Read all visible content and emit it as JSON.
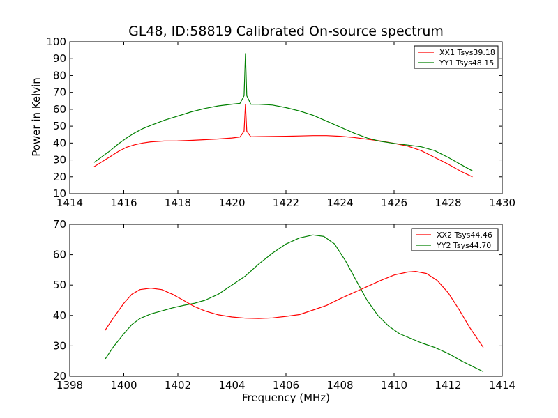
{
  "chart_data": [
    {
      "type": "line",
      "title": "GL48, ID:58819 Calibrated On-source spectrum",
      "xlabel": "",
      "ylabel": "Power in Kelvin",
      "xlim": [
        1414,
        1430
      ],
      "ylim": [
        10,
        100
      ],
      "xticks": [
        1414,
        1416,
        1418,
        1420,
        1422,
        1424,
        1426,
        1428,
        1430
      ],
      "yticks": [
        10,
        20,
        30,
        40,
        50,
        60,
        70,
        80,
        90,
        100
      ],
      "grid": false,
      "legend_position": "top-right",
      "series": [
        {
          "name": "XX1 Tsys39.18",
          "color": "#ff0000",
          "x": [
            1414.9,
            1415.2,
            1415.5,
            1415.8,
            1416.1,
            1416.4,
            1416.7,
            1417.0,
            1417.5,
            1418.0,
            1418.5,
            1419.0,
            1419.5,
            1420.0,
            1420.3,
            1420.45,
            1420.5,
            1420.55,
            1420.7,
            1421.0,
            1421.5,
            1422.0,
            1422.5,
            1423.0,
            1423.5,
            1424.0,
            1424.5,
            1425.0,
            1425.5,
            1426.0,
            1426.5,
            1427.0,
            1427.5,
            1428.0,
            1428.5,
            1428.9
          ],
          "y": [
            26,
            29,
            32,
            35,
            37.5,
            39,
            40,
            40.7,
            41.2,
            41.3,
            41.6,
            42,
            42.4,
            43,
            43.6,
            47,
            63,
            47,
            43.7,
            43.8,
            43.9,
            44,
            44.2,
            44.4,
            44.4,
            44,
            43.3,
            42.3,
            41.2,
            39.8,
            38.2,
            35.5,
            31.5,
            27.5,
            23,
            20
          ]
        },
        {
          "name": "YY1 Tsys48.15",
          "color": "#008000",
          "x": [
            1414.9,
            1415.2,
            1415.5,
            1415.8,
            1416.1,
            1416.4,
            1416.7,
            1417.0,
            1417.5,
            1418.0,
            1418.5,
            1419.0,
            1419.5,
            1420.0,
            1420.3,
            1420.45,
            1420.5,
            1420.55,
            1420.7,
            1421.0,
            1421.5,
            1422.0,
            1422.5,
            1423.0,
            1423.5,
            1424.0,
            1424.5,
            1425.0,
            1425.5,
            1426.0,
            1426.5,
            1427.0,
            1427.5,
            1428.0,
            1428.5,
            1428.9
          ],
          "y": [
            28.5,
            32,
            35.5,
            39.5,
            43,
            46,
            48.5,
            50.5,
            53.5,
            56,
            58.5,
            60.5,
            62,
            63,
            63.5,
            68,
            93,
            68,
            63,
            63,
            62.5,
            61,
            59,
            56.5,
            53,
            49.5,
            46,
            43,
            41,
            39.8,
            38.8,
            37.8,
            35.5,
            31.5,
            27,
            23.5
          ]
        }
      ]
    },
    {
      "type": "line",
      "title": "",
      "xlabel": "Frequency (MHz)",
      "ylabel": "",
      "xlim": [
        1398,
        1414
      ],
      "ylim": [
        20,
        70
      ],
      "xticks": [
        1398,
        1400,
        1402,
        1404,
        1406,
        1408,
        1410,
        1412,
        1414
      ],
      "yticks": [
        20,
        30,
        40,
        50,
        60,
        70
      ],
      "grid": false,
      "legend_position": "top-right",
      "series": [
        {
          "name": "XX2 Tsys44.46",
          "color": "#ff0000",
          "x": [
            1399.3,
            1399.6,
            1400.0,
            1400.3,
            1400.6,
            1401.0,
            1401.4,
            1401.8,
            1402.2,
            1402.6,
            1403.0,
            1403.5,
            1404.0,
            1404.5,
            1405.0,
            1405.5,
            1406.0,
            1406.5,
            1407.0,
            1407.5,
            1408.0,
            1408.5,
            1409.0,
            1409.5,
            1410.0,
            1410.5,
            1410.8,
            1411.2,
            1411.6,
            1412.0,
            1412.4,
            1412.8,
            1413.3
          ],
          "y": [
            35,
            39,
            44,
            47,
            48.5,
            49,
            48.5,
            47,
            45,
            43,
            41.5,
            40.2,
            39.5,
            39.1,
            39,
            39.2,
            39.7,
            40.3,
            41.8,
            43.3,
            45.5,
            47.5,
            49.5,
            51.5,
            53.3,
            54.3,
            54.5,
            53.8,
            51.5,
            47.5,
            42,
            36,
            29.5
          ]
        },
        {
          "name": "YY2 Tsys44.70",
          "color": "#008000",
          "x": [
            1399.3,
            1399.6,
            1400.0,
            1400.3,
            1400.6,
            1401.0,
            1401.4,
            1401.8,
            1402.2,
            1402.6,
            1403.0,
            1403.5,
            1404.0,
            1404.5,
            1405.0,
            1405.5,
            1406.0,
            1406.5,
            1407.0,
            1407.4,
            1407.8,
            1408.2,
            1408.6,
            1409.0,
            1409.4,
            1409.8,
            1410.2,
            1410.6,
            1411.0,
            1411.5,
            1412.0,
            1412.5,
            1413.3
          ],
          "y": [
            25.5,
            29.5,
            34,
            37,
            39,
            40.5,
            41.5,
            42.5,
            43.3,
            44,
            45,
            47,
            50,
            53,
            57,
            60.5,
            63.5,
            65.5,
            66.5,
            66,
            63.5,
            58,
            51.5,
            45,
            40,
            36.5,
            34,
            32.5,
            31,
            29.5,
            27.5,
            25,
            21.5
          ]
        }
      ]
    }
  ]
}
